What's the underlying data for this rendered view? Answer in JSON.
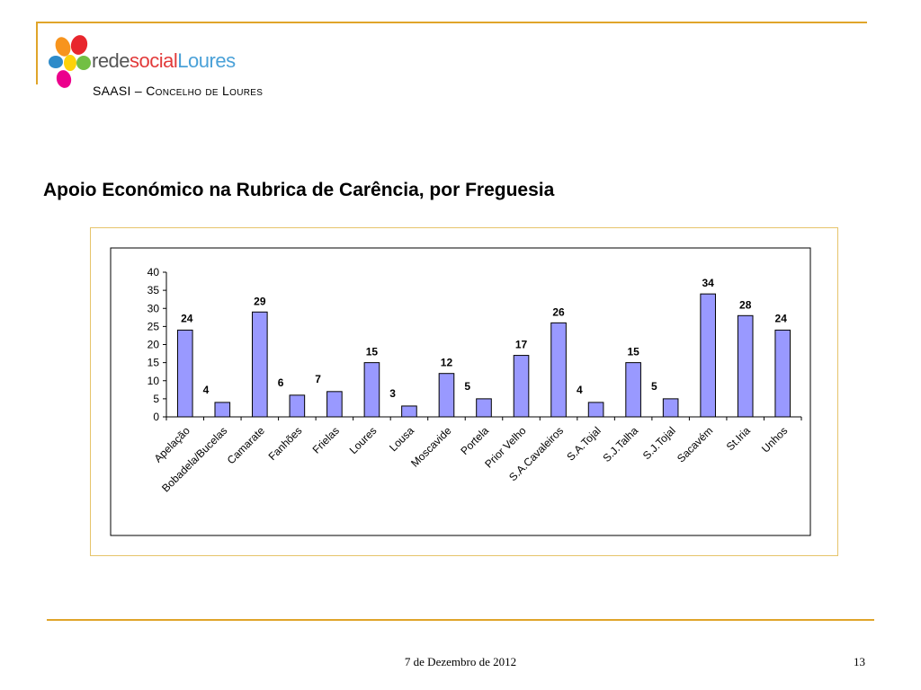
{
  "header": {
    "logo_text_part1": "rede",
    "logo_text_part2": "social",
    "logo_text_part3": "Loures",
    "subtitle": "SAASI – Concelho de Loures"
  },
  "slide": {
    "title": "Apoio Económico na Rubrica de Carência, por Freguesia"
  },
  "chart_data": {
    "type": "bar",
    "categories": [
      "Apelação",
      "Bobadela/Bucelas",
      "Camarate",
      "Fanhões",
      "Frielas",
      "Loures",
      "Lousa",
      "Moscavide",
      "Portela",
      "Prior Velho",
      "S.A.Cavaleiros",
      "S.A.Tojal",
      "S.J.Talha",
      "S.J.Tojal",
      "Sacavém",
      "St.Iria",
      "Unhos"
    ],
    "values": [
      24,
      4,
      29,
      6,
      7,
      15,
      3,
      12,
      5,
      17,
      26,
      4,
      15,
      5,
      34,
      28,
      24
    ],
    "title": "",
    "xlabel": "",
    "ylabel": "",
    "ylim": [
      0,
      40
    ],
    "yticks": [
      0,
      5,
      10,
      15,
      20,
      25,
      30,
      35,
      40
    ],
    "bar_color": "#9999ff",
    "bar_stroke": "#000000",
    "data_labels": true,
    "grid": false,
    "legend": "none"
  },
  "footer": {
    "date": "7 de Dezembro de 2012",
    "page": "13"
  }
}
